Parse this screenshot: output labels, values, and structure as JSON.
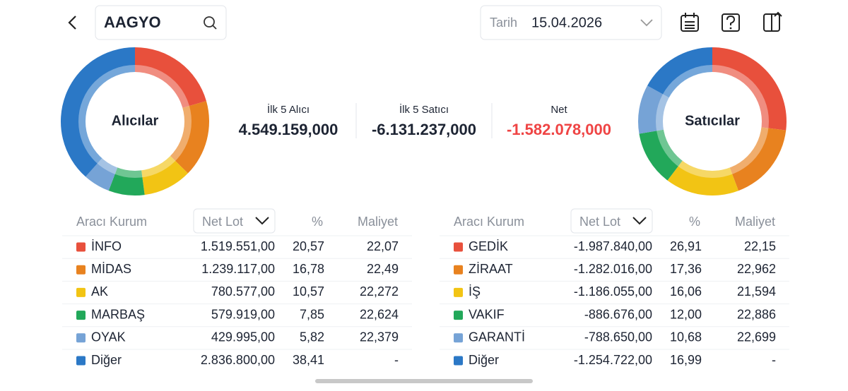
{
  "header": {
    "symbol": "AAGYO",
    "date_label": "Tarih",
    "date": "15.04.2026"
  },
  "summary": [
    {
      "label": "İlk 5 Alıcı",
      "value": "4.549.159,000"
    },
    {
      "label": "İlk 5 Satıcı",
      "value": "-6.131.237,000"
    },
    {
      "label": "Net",
      "value": "-1.582.078,000"
    }
  ],
  "buyers": {
    "title": "Alıcılar",
    "columns": [
      "Aracı Kurum",
      "Net Lot",
      "%",
      "Maliyet"
    ],
    "names": [
      "İNFO",
      "MİDAS",
      "AK",
      "MARBAŞ",
      "OYAK",
      "Diğer"
    ],
    "colors": [
      "#e8503c",
      "#e8821f",
      "#f2c414",
      "#22a85a",
      "#76a3d6",
      "#2b78c6"
    ],
    "net_lots": [
      "1.519.551,00",
      "1.239.117,00",
      "780.577,00",
      "579.919,00",
      "429.995,00",
      "2.836.800,00"
    ],
    "values": [
      20.57,
      16.78,
      10.57,
      7.85,
      5.82,
      38.41
    ],
    "value_labels": [
      "20,57",
      "16,78",
      "10,57",
      "7,85",
      "5,82",
      "38,41"
    ],
    "costs": [
      "22,07",
      "22,49",
      "22,272",
      "22,624",
      "22,379",
      "-"
    ]
  },
  "sellers": {
    "title": "Satıcılar",
    "columns": [
      "Aracı Kurum",
      "Net Lot",
      "%",
      "Maliyet"
    ],
    "names": [
      "GEDİK",
      "ZİRAAT",
      "İŞ",
      "VAKIF",
      "GARANTİ",
      "Diğer"
    ],
    "colors": [
      "#e8503c",
      "#e8821f",
      "#f2c414",
      "#22a85a",
      "#76a3d6",
      "#2b78c6"
    ],
    "net_lots": [
      "-1.987.840,00",
      "-1.282.016,00",
      "-1.186.055,00",
      "-886.676,00",
      "-788.650,00",
      "-1.254.722,00"
    ],
    "values": [
      26.91,
      17.36,
      16.06,
      12.0,
      10.68,
      16.99
    ],
    "value_labels": [
      "26,91",
      "17,36",
      "16,06",
      "12,00",
      "10,68",
      "16,99"
    ],
    "costs": [
      "22,15",
      "22,962",
      "21,594",
      "22,886",
      "22,699",
      "-"
    ]
  }
}
